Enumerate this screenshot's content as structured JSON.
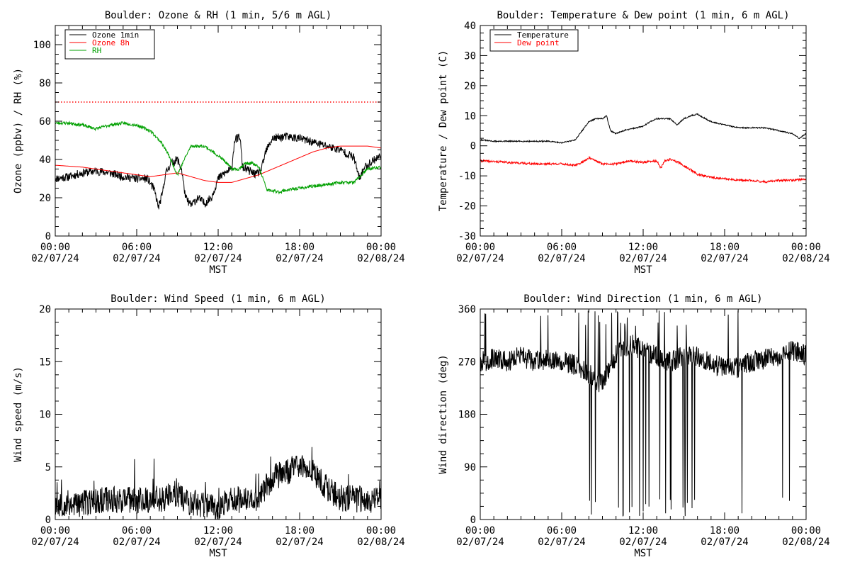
{
  "chart_data": [
    {
      "id": "ozone",
      "type": "line",
      "title": "Boulder: Ozone & RH (1 min, 5/6 m AGL)",
      "xlabel": "MST",
      "ylabel": "Ozone (ppbv) / RH (%)",
      "ylim": [
        0,
        110
      ],
      "yticks": [
        0,
        20,
        40,
        60,
        80,
        100
      ],
      "xlim_hours": [
        0,
        24
      ],
      "xtick_times": [
        "00:00",
        "06:00",
        "12:00",
        "18:00",
        "00:00"
      ],
      "xtick_dates": [
        "02/07/24",
        "02/07/24",
        "02/07/24",
        "02/07/24",
        "02/08/24"
      ],
      "legend": [
        {
          "label": "Ozone 1min",
          "color": "#000000"
        },
        {
          "label": "Ozone 8h",
          "color": "#ff0000"
        },
        {
          "label": "RH",
          "color": "#00a000"
        }
      ],
      "legend_position": "top-left",
      "reference_line": {
        "y": 70,
        "color": "#ff0000",
        "style": "dotted"
      },
      "series": [
        {
          "name": "Ozone 1min",
          "color": "#000000",
          "noise": 2.2,
          "seed": 11,
          "points": [
            [
              0,
              30
            ],
            [
              1,
              31
            ],
            [
              2,
              33
            ],
            [
              3,
              34
            ],
            [
              4,
              33
            ],
            [
              5,
              31
            ],
            [
              6,
              30
            ],
            [
              6.8,
              30
            ],
            [
              7.3,
              24
            ],
            [
              7.6,
              15
            ],
            [
              7.9,
              22
            ],
            [
              8.1,
              32
            ],
            [
              8.5,
              38
            ],
            [
              9.0,
              40
            ],
            [
              9.3,
              35
            ],
            [
              9.6,
              20
            ],
            [
              10.0,
              16
            ],
            [
              10.5,
              20
            ],
            [
              11.0,
              17
            ],
            [
              11.5,
              20
            ],
            [
              12.0,
              30
            ],
            [
              12.5,
              33
            ],
            [
              13.0,
              35
            ],
            [
              13.2,
              50
            ],
            [
              13.6,
              52
            ],
            [
              13.8,
              36
            ],
            [
              14.3,
              34
            ],
            [
              14.8,
              32
            ],
            [
              15.2,
              35
            ],
            [
              15.5,
              44
            ],
            [
              16.0,
              51
            ],
            [
              17.0,
              52
            ],
            [
              18.0,
              51
            ],
            [
              19.0,
              49
            ],
            [
              20.0,
              47
            ],
            [
              21.0,
              45
            ],
            [
              22.0,
              41
            ],
            [
              22.4,
              30
            ],
            [
              22.8,
              36
            ],
            [
              23.5,
              40
            ],
            [
              24,
              42
            ]
          ]
        },
        {
          "name": "Ozone 8h",
          "color": "#ff0000",
          "noise": 0,
          "seed": 1,
          "points": [
            [
              0,
              37
            ],
            [
              2,
              36
            ],
            [
              4,
              34
            ],
            [
              6,
              32
            ],
            [
              7,
              31
            ],
            [
              8,
              32
            ],
            [
              9,
              33
            ],
            [
              10,
              31
            ],
            [
              11,
              29
            ],
            [
              12,
              28
            ],
            [
              13,
              28
            ],
            [
              14,
              30
            ],
            [
              15,
              32
            ],
            [
              16,
              35
            ],
            [
              17,
              38
            ],
            [
              18,
              41
            ],
            [
              19,
              44
            ],
            [
              20,
              46
            ],
            [
              21,
              47
            ],
            [
              22,
              47
            ],
            [
              23,
              47
            ],
            [
              24,
              46
            ]
          ]
        },
        {
          "name": "RH",
          "color": "#00a000",
          "noise": 0.8,
          "seed": 23,
          "points": [
            [
              0,
              59
            ],
            [
              1,
              59
            ],
            [
              2,
              58
            ],
            [
              3,
              56
            ],
            [
              4,
              58
            ],
            [
              5,
              59
            ],
            [
              6,
              58
            ],
            [
              7,
              55
            ],
            [
              7.8,
              49
            ],
            [
              8.3,
              43
            ],
            [
              9.0,
              32
            ],
            [
              9.5,
              40
            ],
            [
              10.0,
              47
            ],
            [
              11.0,
              47
            ],
            [
              12.0,
              42
            ],
            [
              12.5,
              39
            ],
            [
              13.0,
              35
            ],
            [
              13.5,
              35
            ],
            [
              14.0,
              38
            ],
            [
              14.5,
              38
            ],
            [
              15.0,
              36
            ],
            [
              15.6,
              24
            ],
            [
              16.5,
              23
            ],
            [
              17.0,
              24
            ],
            [
              18.0,
              25
            ],
            [
              19.0,
              26
            ],
            [
              20.0,
              27
            ],
            [
              21.0,
              28
            ],
            [
              22.0,
              28
            ],
            [
              23.0,
              35
            ],
            [
              24,
              36
            ]
          ]
        }
      ]
    },
    {
      "id": "temperature",
      "type": "line",
      "title": "Boulder: Temperature & Dew point (1 min, 6 m AGL)",
      "xlabel": "MST",
      "ylabel": "Temperature / Dew point (C)",
      "ylim": [
        -30,
        40
      ],
      "yticks": [
        -30,
        -20,
        -10,
        0,
        10,
        20,
        30,
        40
      ],
      "xlim_hours": [
        0,
        24
      ],
      "xtick_times": [
        "00:00",
        "06:00",
        "12:00",
        "18:00",
        "00:00"
      ],
      "xtick_dates": [
        "02/07/24",
        "02/07/24",
        "02/07/24",
        "02/07/24",
        "02/08/24"
      ],
      "legend": [
        {
          "label": "Temperature",
          "color": "#000000"
        },
        {
          "label": "Dew point",
          "color": "#ff0000"
        }
      ],
      "legend_position": "top-left",
      "series": [
        {
          "name": "Temperature",
          "color": "#000000",
          "noise": 0.2,
          "seed": 31,
          "points": [
            [
              0,
              2
            ],
            [
              1,
              1.5
            ],
            [
              2,
              1.5
            ],
            [
              3,
              1.5
            ],
            [
              4,
              1.5
            ],
            [
              5,
              1.5
            ],
            [
              6,
              1
            ],
            [
              7,
              2
            ],
            [
              7.5,
              5
            ],
            [
              8,
              8
            ],
            [
              8.5,
              9
            ],
            [
              9,
              9
            ],
            [
              9.3,
              10
            ],
            [
              9.6,
              5
            ],
            [
              10,
              4
            ],
            [
              10.5,
              5
            ],
            [
              11,
              5.5
            ],
            [
              11.5,
              6
            ],
            [
              12,
              6.5
            ],
            [
              12.5,
              8
            ],
            [
              13,
              9
            ],
            [
              14,
              9
            ],
            [
              14.5,
              7
            ],
            [
              15,
              9
            ],
            [
              15.5,
              10
            ],
            [
              16,
              10.5
            ],
            [
              17,
              8
            ],
            [
              18,
              7
            ],
            [
              19,
              6
            ],
            [
              20,
              6
            ],
            [
              21,
              6
            ],
            [
              22,
              5
            ],
            [
              23,
              4
            ],
            [
              23.5,
              2.5
            ],
            [
              24,
              4
            ]
          ]
        },
        {
          "name": "Dew point",
          "color": "#ff0000",
          "noise": 0.35,
          "seed": 41,
          "points": [
            [
              0,
              -5
            ],
            [
              2,
              -5.5
            ],
            [
              4,
              -6
            ],
            [
              6,
              -6
            ],
            [
              7,
              -6.5
            ],
            [
              7.5,
              -5.5
            ],
            [
              8,
              -4
            ],
            [
              8.5,
              -5
            ],
            [
              9,
              -6
            ],
            [
              10,
              -6
            ],
            [
              11,
              -5
            ],
            [
              12,
              -5.5
            ],
            [
              13,
              -5
            ],
            [
              13.3,
              -7.5
            ],
            [
              13.6,
              -5
            ],
            [
              14,
              -4.5
            ],
            [
              14.6,
              -5.5
            ],
            [
              15.5,
              -8
            ],
            [
              16,
              -9.5
            ],
            [
              17,
              -10.5
            ],
            [
              18,
              -11
            ],
            [
              19,
              -11.5
            ],
            [
              20,
              -11.5
            ],
            [
              21,
              -12
            ],
            [
              22,
              -11.5
            ],
            [
              23,
              -11.5
            ],
            [
              24,
              -11
            ]
          ]
        }
      ]
    },
    {
      "id": "windspeed",
      "type": "line",
      "title": "Boulder: Wind Speed (1 min, 6 m AGL)",
      "xlabel": "MST",
      "ylabel": "Wind speed (m/s)",
      "ylim": [
        0,
        20
      ],
      "yticks": [
        0,
        5,
        10,
        15,
        20
      ],
      "xlim_hours": [
        0,
        24
      ],
      "xtick_times": [
        "00:00",
        "06:00",
        "12:00",
        "18:00",
        "00:00"
      ],
      "xtick_dates": [
        "02/07/24",
        "02/07/24",
        "02/07/24",
        "02/07/24",
        "02/08/24"
      ],
      "series": [
        {
          "name": "",
          "color": "#000000",
          "noise": 1.3,
          "seed": 53,
          "points": [
            [
              0,
              1.5
            ],
            [
              2,
              1.5
            ],
            [
              4,
              2
            ],
            [
              6,
              1.8
            ],
            [
              8,
              2
            ],
            [
              9,
              2.5
            ],
            [
              10,
              1.5
            ],
            [
              11,
              1.5
            ],
            [
              12,
              1
            ],
            [
              13,
              2
            ],
            [
              14,
              1.8
            ],
            [
              15,
              2
            ],
            [
              16,
              4
            ],
            [
              17,
              4.5
            ],
            [
              18,
              5
            ],
            [
              19,
              4.5
            ],
            [
              20,
              3
            ],
            [
              21,
              2
            ],
            [
              22,
              2
            ],
            [
              23,
              1.8
            ],
            [
              24,
              2
            ]
          ]
        }
      ]
    },
    {
      "id": "winddir",
      "type": "line",
      "title": "Boulder: Wind Direction (1 min, 6 m AGL)",
      "xlabel": "MST",
      "ylabel": "Wind direction (deg)",
      "ylim": [
        0,
        360
      ],
      "yticks": [
        0,
        90,
        180,
        270,
        360
      ],
      "xlim_hours": [
        0,
        24
      ],
      "xtick_times": [
        "00:00",
        "06:00",
        "12:00",
        "18:00",
        "00:00"
      ],
      "xtick_dates": [
        "02/07/24",
        "02/07/24",
        "02/07/24",
        "02/07/24",
        "02/08/24"
      ],
      "series": [
        {
          "name": "",
          "color": "#000000",
          "noise": 18,
          "seed": 67,
          "points": [
            [
              0,
              270
            ],
            [
              1,
              275
            ],
            [
              2,
              270
            ],
            [
              3,
              280
            ],
            [
              4,
              270
            ],
            [
              5,
              275
            ],
            [
              6,
              270
            ],
            [
              7,
              265
            ],
            [
              8,
              250
            ],
            [
              9,
              230
            ],
            [
              10,
              280
            ],
            [
              11,
              300
            ],
            [
              12,
              290
            ],
            [
              13,
              280
            ],
            [
              14,
              270
            ],
            [
              15,
              280
            ],
            [
              16,
              280
            ],
            [
              17,
              265
            ],
            [
              18,
              260
            ],
            [
              19,
              260
            ],
            [
              20,
              270
            ],
            [
              21,
              275
            ],
            [
              22,
              280
            ],
            [
              23,
              290
            ],
            [
              24,
              280
            ]
          ]
        }
      ]
    }
  ]
}
